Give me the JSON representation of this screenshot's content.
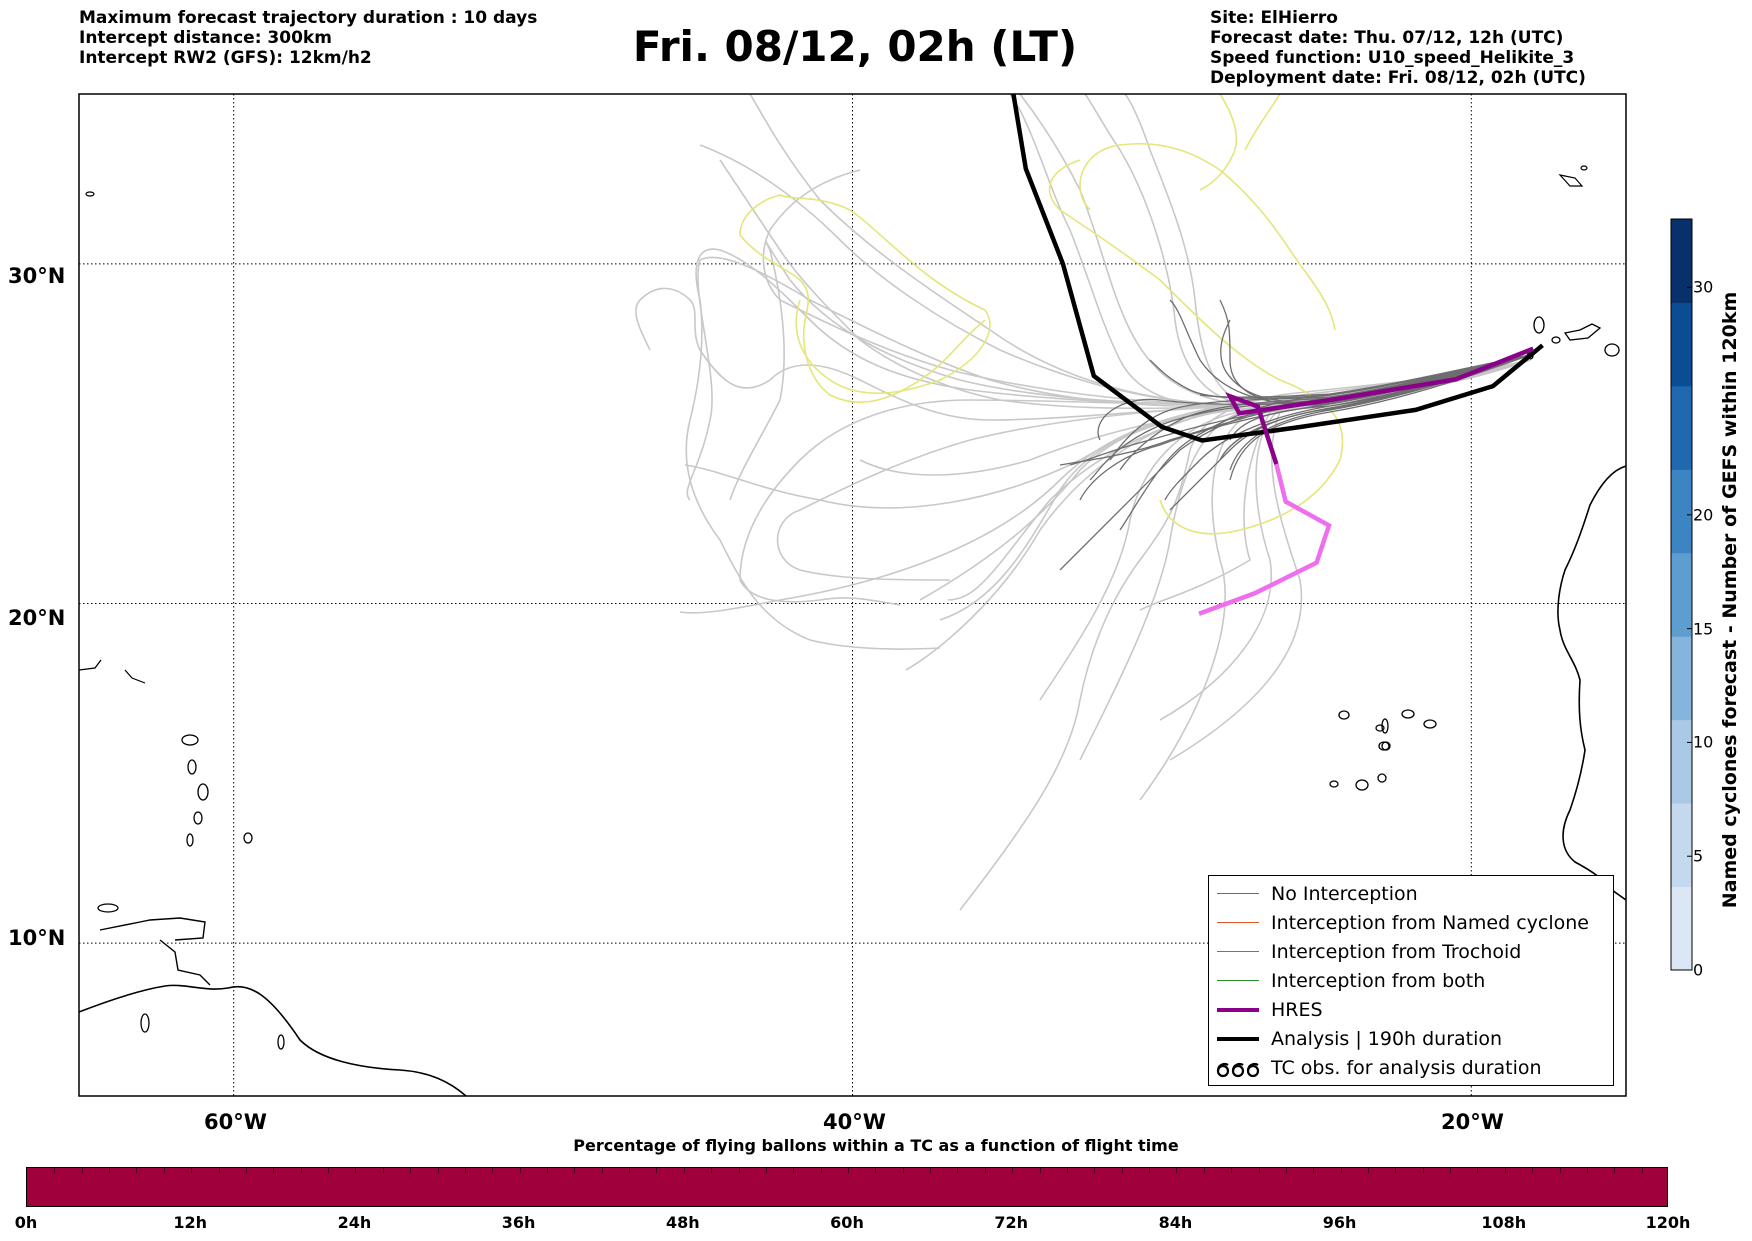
{
  "header": {
    "left_lines": [
      "Maximum forecast trajectory duration : 10 days",
      "Intercept distance: 300km",
      "Intercept RW2 (GFS):  12km/h2"
    ],
    "title": "Fri. 08/12, 02h (LT)",
    "right_lines": [
      "Site: ElHierro",
      "Forecast date: Thu. 07/12, 12h (UTC)",
      "Speed function: U10_speed_Helikite_3",
      "Deployment date: Fri. 08/12, 02h (UTC)"
    ]
  },
  "map": {
    "lat_labels": [
      "30°N",
      "20°N",
      "10°N"
    ],
    "lon_labels": [
      "60°W",
      "40°W",
      "20°W"
    ],
    "grid": true
  },
  "legend": {
    "items": [
      {
        "label": "No Interception",
        "color": "#6e6e6e",
        "style": "thin"
      },
      {
        "label": "Interception from Named cyclone",
        "color": "#e5532b",
        "style": "thin"
      },
      {
        "label": "Interception from Trochoid",
        "color": "#7d7d2a",
        "style": "thin"
      },
      {
        "label": "Interception from both",
        "color": "#2e8b2e",
        "style": "thin"
      },
      {
        "label": "HRES",
        "color": "#8b008b",
        "style": "thick"
      },
      {
        "label": "Analysis | 190h duration",
        "color": "#000000",
        "style": "thick"
      },
      {
        "label": "TC obs. for analysis duration",
        "color": "#000000",
        "style": "symbol"
      }
    ]
  },
  "bottom_colorbar": {
    "title": "Percentage of flying ballons within a TC as a function of flight time",
    "ticks": [
      "0h",
      "12h",
      "24h",
      "36h",
      "48h",
      "60h",
      "72h",
      "84h",
      "96h",
      "108h",
      "120h"
    ],
    "color": "#a0003c"
  },
  "right_colorbar": {
    "label": "Named cyclones forecast - Number of GEFS within 120km",
    "ticks": [
      "0",
      "5",
      "10",
      "15",
      "20",
      "30"
    ],
    "colors": [
      "#dbe7f5",
      "#c4d9ee",
      "#a9c9e6",
      "#85b5dc",
      "#5e9dd0",
      "#3d84c2",
      "#2068b0",
      "#0b4d94",
      "#08306b"
    ]
  },
  "chart_data": {
    "type": "map-trajectories",
    "title": "Fri. 08/12, 02h (LT)",
    "lat_range": [
      5.5,
      35
    ],
    "lon_range": [
      -65,
      -15
    ],
    "lat_ticks": [
      30,
      20,
      10
    ],
    "lon_ticks": [
      -60,
      -40,
      -20
    ],
    "series": [
      {
        "name": "Analysis | 190h duration",
        "color": "#000000",
        "points": [
          [
            -17.7,
            27.6
          ],
          [
            -19.3,
            26.4
          ],
          [
            -21.8,
            25.7
          ],
          [
            -25.5,
            25.2
          ],
          [
            -28.7,
            24.8
          ],
          [
            -30.0,
            25.2
          ],
          [
            -32.2,
            26.7
          ],
          [
            -33.2,
            30.0
          ],
          [
            -34.4,
            32.8
          ],
          [
            -34.8,
            35.0
          ]
        ]
      },
      {
        "name": "HRES",
        "color": "#8b008b",
        "points": [
          [
            -18.0,
            27.5
          ],
          [
            -20.5,
            26.6
          ],
          [
            -24.5,
            26.0
          ],
          [
            -27.5,
            25.6
          ],
          [
            -27.8,
            26.1
          ],
          [
            -26.9,
            25.8
          ],
          [
            -26.3,
            24.1
          ]
        ]
      },
      {
        "color": "#ee6fee",
        "points": [
          [
            -26.3,
            24.1
          ],
          [
            -26.0,
            23.0
          ],
          [
            -24.6,
            22.3
          ],
          [
            -25.0,
            21.2
          ],
          [
            -27.0,
            20.3
          ],
          [
            -28.8,
            19.7
          ]
        ]
      }
    ]
  }
}
